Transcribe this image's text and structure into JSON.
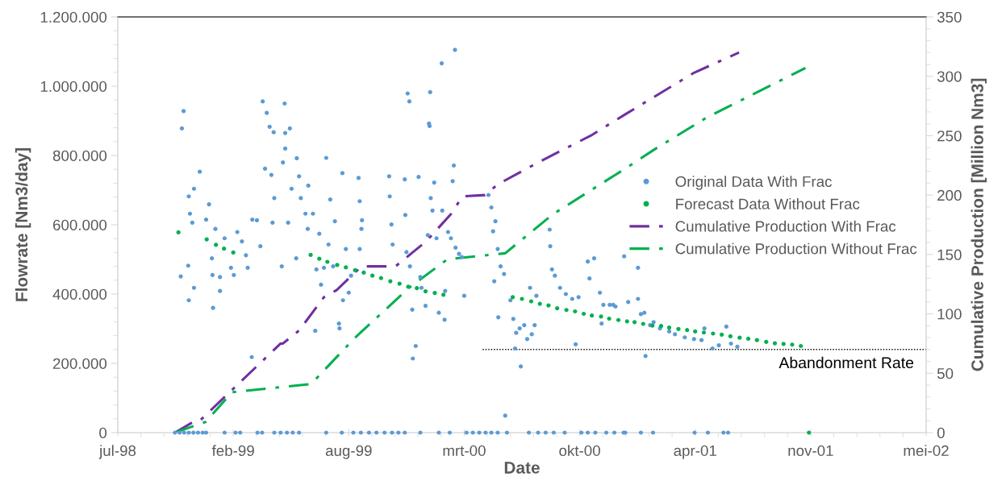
{
  "chart_data": {
    "type": "scatter",
    "xlabel": "Date",
    "ylabel": "Flowrate [Nm3/day]",
    "y2label": "Cumulative Production [Million Nm3]",
    "xlim": [
      "1998-07-24",
      "2002-05-24"
    ],
    "xticks": [
      {
        "value": "1998-07-24",
        "label": "jul-98"
      },
      {
        "value": "1999-02-09",
        "label": "feb-99"
      },
      {
        "value": "1999-08-28",
        "label": "aug-99"
      },
      {
        "value": "2000-03-15",
        "label": "mrt-00"
      },
      {
        "value": "2000-10-01",
        "label": "okt-00"
      },
      {
        "value": "2001-04-19",
        "label": "apr-01"
      },
      {
        "value": "2001-11-05",
        "label": "nov-01"
      },
      {
        "value": "2002-05-24",
        "label": "mei-02"
      }
    ],
    "ylim": [
      0,
      1200000
    ],
    "yticks": [
      {
        "value": 0,
        "label": "0"
      },
      {
        "value": 200000,
        "label": "200.000"
      },
      {
        "value": 400000,
        "label": "400.000"
      },
      {
        "value": 600000,
        "label": "600.000"
      },
      {
        "value": 800000,
        "label": "800.000"
      },
      {
        "value": 1000000,
        "label": "1.000.000"
      },
      {
        "value": 1200000,
        "label": "1.200.000"
      }
    ],
    "y2lim": [
      0,
      350
    ],
    "y2ticks": [
      0,
      50,
      100,
      150,
      200,
      250,
      300,
      350
    ],
    "legend": "right",
    "grid": false,
    "series": [
      {
        "name": "Original Data With Frac",
        "color": "#5b9bd5",
        "marker": "circle",
        "x": [
          "1998-11-10",
          "1998-11-12",
          "1998-11-15",
          "1998-11-23",
          "1998-11-24",
          "1998-11-24",
          "1998-11-26",
          "1998-11-30",
          "1998-12-03",
          "1998-12-03",
          "1998-12-13",
          "1998-12-24",
          "1998-12-29",
          "1999-01-03",
          "1999-01-04",
          "1999-01-05",
          "1999-01-09",
          "1999-01-17",
          "1999-01-17",
          "1999-01-25",
          "1999-02-05",
          "1999-02-10",
          "1999-02-16",
          "1999-02-24",
          "1999-03-03",
          "1999-03-06",
          "1999-03-13",
          "1999-03-14",
          "1999-03-22",
          "1999-03-28",
          "1999-04-01",
          "1999-04-05",
          "1999-04-08",
          "1999-04-13",
          "1999-04-16",
          "1999-04-18",
          "1999-04-20",
          "1999-04-21",
          "1999-05-04",
          "1999-05-06",
          "1999-05-09",
          "1999-05-10",
          "1999-05-10",
          "1999-05-15",
          "1999-05-18",
          "1999-05-21",
          "1999-05-29",
          "1999-05-30",
          "1999-06-03",
          "1999-06-06",
          "1999-06-14",
          "1999-06-18",
          "1999-06-19",
          "1999-06-27",
          "1999-07-01",
          "1999-07-03",
          "1999-07-08",
          "1999-07-11",
          "1999-07-16",
          "1999-07-20",
          "1999-07-24",
          "1999-07-27",
          "1999-08-01",
          "1999-08-04",
          "1999-08-11",
          "1999-08-12",
          "1999-08-17",
          "1999-08-18",
          "1999-08-23",
          "1999-08-28",
          "1999-09-01",
          "1999-09-14",
          "1999-09-16",
          "1999-09-16",
          "1999-09-19",
          "1999-09-20",
          "1999-11-06",
          "1999-11-07",
          "1999-11-10",
          "1999-11-12",
          "1999-12-03",
          "1999-12-04",
          "1999-12-06",
          "1999-12-08",
          "1999-12-11",
          "1999-12-12",
          "1999-12-16",
          "1999-12-17",
          "1999-12-22",
          "1999-12-27",
          "1999-12-30",
          "2000-01-01",
          "2000-01-08",
          "2000-01-12",
          "2000-01-14",
          "2000-01-15",
          "2000-01-16",
          "2000-01-17",
          "2000-01-20",
          "2000-01-23",
          "2000-01-27",
          "2000-01-31",
          "2000-02-05",
          "2000-02-06",
          "2000-02-10",
          "2000-02-11",
          "2000-02-16",
          "2000-02-21",
          "2000-02-24",
          "2000-02-26",
          "2000-02-28",
          "2000-02-29",
          "2000-03-06",
          "2000-03-11",
          "2000-03-15",
          "2000-04-26",
          "2000-05-01",
          "2000-05-04",
          "2000-05-06",
          "2000-05-08",
          "2000-05-12",
          "2000-05-13",
          "2000-05-17",
          "2000-05-23",
          "2000-05-25",
          "2000-06-03",
          "2000-06-08",
          "2000-06-11",
          "2000-06-13",
          "2000-06-19",
          "2000-06-21",
          "2000-06-27",
          "2000-07-02",
          "2000-07-07",
          "2000-07-10",
          "2000-07-15",
          "2000-07-18",
          "2000-08-10",
          "2000-08-11",
          "2000-08-14",
          "2000-08-19",
          "2000-08-28",
          "2000-09-07",
          "2000-09-18",
          "2000-09-24",
          "2000-09-29",
          "2000-10-15",
          "2000-10-18",
          "2000-10-26",
          "2000-11-05",
          "2000-11-08",
          "2000-11-11",
          "2000-11-22",
          "2000-11-28",
          "2000-12-02",
          "2000-12-17",
          "2000-12-24",
          "2001-01-10",
          "2001-01-10",
          "2001-01-15",
          "2001-01-21",
          "2001-01-23",
          "2001-01-31",
          "2001-02-06",
          "2001-02-17",
          "2001-03-05",
          "2001-03-15",
          "2001-04-01",
          "2001-04-17",
          "2001-04-30",
          "2001-05-05",
          "2001-05-19",
          "2001-05-30",
          "2001-06-12",
          "2001-06-20",
          "2001-07-01",
          "1998-10-31",
          "1998-11-08",
          "1998-11-16",
          "1998-11-24",
          "1998-12-02",
          "1998-12-10",
          "1998-12-18",
          "1998-12-24",
          "1999-01-25",
          "1999-02-13",
          "1999-02-21",
          "1999-03-23",
          "1999-03-31",
          "1999-04-21",
          "1999-05-02",
          "1999-05-13",
          "1999-05-23",
          "1999-06-03",
          "1999-07-20",
          "1999-08-16",
          "1999-09-05",
          "1999-09-18",
          "1999-10-02",
          "1999-10-15",
          "1999-10-29",
          "1999-11-11",
          "1999-11-22",
          "1999-12-03",
          "1999-12-30",
          "2000-01-31",
          "2000-02-19",
          "2000-03-19",
          "2000-03-30",
          "2000-04-10",
          "2000-04-21",
          "2000-05-01",
          "2000-05-12",
          "2000-05-28",
          "2000-07-05",
          "2000-07-21",
          "2000-08-03",
          "2000-08-17",
          "2000-09-05",
          "2000-10-04",
          "2000-10-15",
          "2000-10-28",
          "2000-11-16",
          "2000-11-30",
          "2000-12-16",
          "2000-12-19",
          "2001-01-15",
          "2001-02-05",
          "2001-04-18",
          "2001-05-11",
          "2001-06-07",
          "2001-06-15"
        ],
        "values": [
          451000,
          878000,
          928000,
          482000,
          682000,
          382000,
          632000,
          606000,
          418000,
          704000,
          753000,
          615000,
          659000,
          503000,
          455000,
          360000,
          588000,
          449000,
          409000,
          561000,
          476000,
          455000,
          579000,
          552000,
          512000,
          476000,
          218000,
          615000,
          613000,
          538000,
          956000,
          762000,
          923000,
          883000,
          744000,
          606000,
          867000,
          677000,
          480000,
          780000,
          950000,
          820000,
          865000,
          606000,
          878000,
          704000,
          503000,
          792000,
          740000,
          677000,
          632000,
          588000,
          713000,
          632000,
          294000,
          471000,
          574000,
          427000,
          476000,
          793000,
          543000,
          673000,
          480000,
          610000,
          315000,
          301000,
          749000,
          382000,
          530000,
          404000,
          453000,
          735000,
          668000,
          530000,
          588000,
          613000,
          740000,
          682000,
          601000,
          543000,
          731000,
          628000,
          521000,
          979000,
          956000,
          480000,
          355000,
          214000,
          250000,
          738000,
          449000,
          418000,
          366000,
          570000,
          892000,
          885000,
          983000,
          677000,
          641000,
          722000,
          561000,
          346000,
          1066000,
          641000,
          326000,
          409000,
          579000,
          561000,
          726000,
          771000,
          1105000,
          534000,
          516000,
          507000,
          395000,
          686000,
          650000,
          581000,
          437000,
          610000,
          530000,
          333000,
          480000,
          458000,
          49000,
          382000,
          328000,
          243000,
          288000,
          301000,
          191000,
          310000,
          270000,
          418000,
          284000,
          310000,
          395000,
          586000,
          538000,
          471000,
          453000,
          418000,
          400000,
          386000,
          255000,
          391000,
          494000,
          445000,
          503000,
          404000,
          315000,
          369000,
          369000,
          369000,
          364000,
          509000,
          377000,
          476000,
          386000,
          342000,
          346000,
          221000,
          310000,
          319000,
          301000,
          292000,
          284000,
          275000,
          270000,
          267000,
          301000,
          243000,
          252000,
          306000,
          257000,
          248000,
          0,
          0,
          0,
          0,
          0,
          0,
          0,
          0,
          0,
          0,
          0,
          0,
          0,
          0,
          0,
          0,
          0,
          0,
          0,
          0,
          0,
          0,
          0,
          0,
          0,
          0,
          0,
          0,
          0,
          0,
          0,
          0,
          0,
          0,
          0,
          0,
          0,
          0,
          0,
          0,
          0,
          0,
          0,
          0,
          0,
          0,
          0,
          0,
          0,
          0,
          0,
          0,
          0,
          0,
          0,
          0
        ]
      },
      {
        "name": "Forecast Data Without Frac",
        "color": "#00b050",
        "marker": "circle",
        "x": [
          "1998-11-06",
          "1998-12-25",
          "1999-01-10",
          "1999-01-24",
          "1999-02-09",
          "1999-06-23",
          "1999-07-08",
          "1999-07-22",
          "1999-08-08",
          "1999-08-23",
          "1999-09-08",
          "1999-09-23",
          "1999-10-08",
          "1999-10-23",
          "1999-11-08",
          "1999-11-24",
          "1999-12-09",
          "1999-12-24",
          "2000-01-08",
          "2000-01-24",
          "2000-02-08",
          "2000-06-07",
          "2000-06-23",
          "2000-07-09",
          "2000-07-24",
          "2000-08-08",
          "2000-08-23",
          "2000-09-08",
          "2000-09-23",
          "2000-10-08",
          "2000-10-22",
          "2000-11-07",
          "2000-11-21",
          "2000-12-07",
          "2000-12-22",
          "2001-01-04",
          "2001-01-19",
          "2001-02-04",
          "2001-02-19",
          "2001-03-05",
          "2001-03-21",
          "2001-04-05",
          "2001-04-19",
          "2001-05-04",
          "2001-05-20",
          "2001-06-04",
          "2001-06-19",
          "2001-07-05",
          "2001-07-20",
          "2001-08-04",
          "2001-08-20",
          "2001-09-04",
          "2001-09-19",
          "2001-10-04",
          "2001-10-19",
          "2001-11-02"
        ],
        "values": [
          578000,
          558000,
          542000,
          531000,
          520000,
          513000,
          502000,
          493000,
          484000,
          477000,
          469000,
          462000,
          453000,
          446000,
          437000,
          430000,
          421000,
          417000,
          408000,
          403000,
          398000,
          391000,
          386000,
          379000,
          372000,
          367000,
          359000,
          354000,
          350000,
          343000,
          338000,
          335000,
          329000,
          325000,
          321000,
          319000,
          314000,
          309000,
          308000,
          303000,
          299000,
          296000,
          292000,
          289000,
          286000,
          283000,
          278000,
          274000,
          271000,
          267000,
          262000,
          258000,
          256000,
          254000,
          250000,
          0
        ]
      },
      {
        "name": "Cumulative Production With Frac",
        "type": "line",
        "axis": "y2",
        "color": "#7030a0",
        "line_style": "dashdot",
        "x": [
          "1998-10-31",
          "1998-12-05",
          "1998-12-13",
          "1999-02-07",
          "1999-05-02",
          "1999-05-06",
          "1999-06-03",
          "1999-07-16",
          "1999-08-07",
          "1999-09-19",
          "1999-11-17",
          "2000-01-09",
          "2000-02-21",
          "2000-03-12",
          "2000-04-20",
          "2000-05-12",
          "2000-07-04",
          "2000-08-28",
          "2000-10-20",
          "2000-12-19",
          "2001-04-17",
          "2001-07-04"
        ],
        "values": [
          0,
          10,
          10,
          36,
          75,
          75,
          86,
          114,
          120,
          140,
          140,
          161,
          184,
          199,
          200,
          209,
          223,
          237,
          250,
          268,
          303,
          320
        ]
      },
      {
        "name": "Cumulative Production Without Frac",
        "type": "line",
        "axis": "y2",
        "color": "#00b050",
        "line_style": "dashdot",
        "x": [
          "1998-10-31",
          "1998-12-23",
          "1999-02-07",
          "1999-06-24",
          "1999-09-08",
          "1999-12-13",
          "2000-02-15",
          "2000-05-25",
          "2000-08-16",
          "2000-12-18",
          "2001-02-06",
          "2001-05-08",
          "2001-10-27"
        ],
        "values": [
          0,
          9,
          34,
          41,
          80,
          123,
          146,
          151,
          184,
          222,
          238,
          265,
          307
        ]
      },
      {
        "type": "line",
        "color": "#000000",
        "line_style": "dotted",
        "x": [
          "2000-04-16",
          "2002-05-24"
        ],
        "values": [
          240000,
          240000
        ]
      }
    ],
    "annotations": [
      "Abandonment Rate"
    ]
  }
}
